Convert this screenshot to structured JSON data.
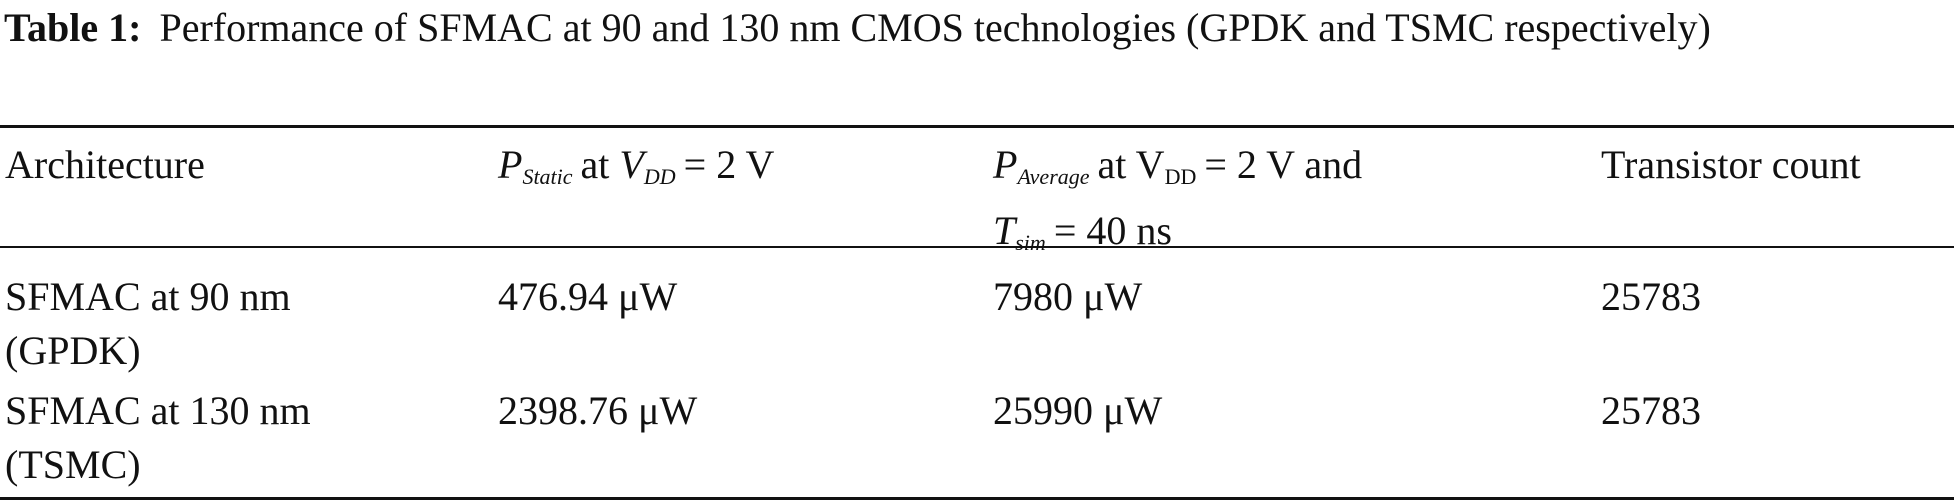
{
  "caption": {
    "label": "Table 1:",
    "text": "Performance of SFMAC at 90 and 130 nm CMOS technologies (GPDK and TSMC respectively)"
  },
  "table": {
    "header": [
      [
        "Architecture"
      ],
      [
        "P",
        "Static",
        "at",
        "V",
        "DD",
        "= 2 V"
      ],
      [
        "P",
        "Average",
        "at V",
        "DD",
        "= 2 V and",
        "T",
        "sim",
        "= 40 ns"
      ],
      [
        "Transistor count"
      ]
    ],
    "rows": [
      [
        "SFMAC at 90 nm (GPDK)",
        "476.94 μW",
        "7980 μW",
        "25783"
      ],
      [
        "SFMAC at 130 nm (TSMC)",
        "2398.76 μW",
        "25990 μW",
        "25783"
      ]
    ]
  }
}
